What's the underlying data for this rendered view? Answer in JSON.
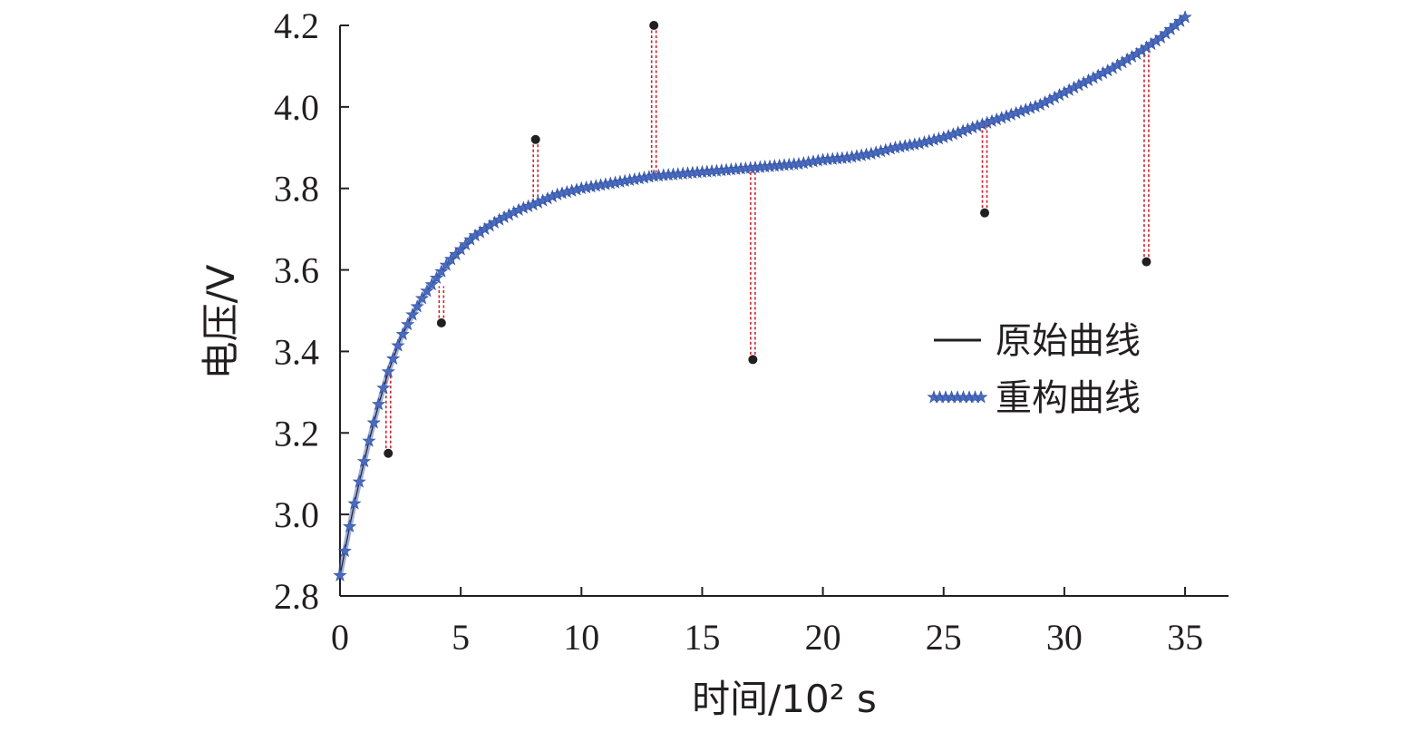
{
  "chart_data": {
    "type": "line",
    "xlabel": "时间/10² s",
    "ylabel": "电压/V",
    "xlim": [
      0,
      36.8
    ],
    "ylim": [
      2.8,
      4.2
    ],
    "x_ticks": [
      0,
      5,
      10,
      15,
      20,
      25,
      30,
      35
    ],
    "y_ticks": [
      2.8,
      3.0,
      3.2,
      3.4,
      3.6,
      3.8,
      4.0,
      4.2
    ],
    "x_tick_labels": [
      "0",
      "5",
      "10",
      "15",
      "20",
      "25",
      "30",
      "35"
    ],
    "y_tick_labels": [
      "2.8",
      "3.0",
      "3.2",
      "3.4",
      "3.6",
      "3.8",
      "4.0",
      "4.2"
    ],
    "grid": false,
    "legend": {
      "position": "right-center",
      "entries": [
        "原始曲线",
        "重构曲线"
      ]
    },
    "series": [
      {
        "name": "原始曲线",
        "color": "#231f20",
        "x": [
          0,
          0.2,
          0.5,
          0.8,
          1.2,
          1.6,
          2.0,
          2.5,
          3.0,
          3.5,
          4.0,
          4.5,
          5.0,
          5.5,
          6.0,
          6.5,
          7.0,
          7.5,
          8.0,
          9.0,
          10.0,
          11.0,
          12.0,
          13.0,
          14.0,
          15.0,
          16.0,
          17.0,
          18.0,
          19.0,
          20.0,
          21.0,
          22.0,
          23.0,
          24.0,
          25.0,
          26.0,
          27.0,
          28.0,
          29.0,
          30.0,
          31.0,
          32.0,
          33.0,
          34.0,
          35.0
        ],
        "y": [
          2.85,
          2.91,
          3.0,
          3.08,
          3.18,
          3.27,
          3.35,
          3.43,
          3.49,
          3.54,
          3.58,
          3.62,
          3.65,
          3.68,
          3.7,
          3.72,
          3.735,
          3.75,
          3.76,
          3.785,
          3.8,
          3.81,
          3.82,
          3.83,
          3.835,
          3.84,
          3.845,
          3.85,
          3.855,
          3.86,
          3.87,
          3.875,
          3.885,
          3.9,
          3.91,
          3.925,
          3.945,
          3.965,
          3.985,
          4.005,
          4.035,
          4.065,
          4.095,
          4.13,
          4.17,
          4.22
        ]
      },
      {
        "name": "重构曲线",
        "color": "#4a6bc0",
        "x": [
          0,
          0.2,
          0.5,
          0.8,
          1.2,
          1.6,
          2.0,
          2.5,
          3.0,
          3.5,
          4.0,
          4.5,
          5.0,
          5.5,
          6.0,
          6.5,
          7.0,
          7.5,
          8.0,
          9.0,
          10.0,
          11.0,
          12.0,
          13.0,
          14.0,
          15.0,
          16.0,
          17.0,
          18.0,
          19.0,
          20.0,
          21.0,
          22.0,
          23.0,
          24.0,
          25.0,
          26.0,
          27.0,
          28.0,
          29.0,
          30.0,
          31.0,
          32.0,
          33.0,
          34.0,
          35.0
        ],
        "y": [
          2.85,
          2.91,
          3.0,
          3.08,
          3.18,
          3.27,
          3.35,
          3.43,
          3.49,
          3.54,
          3.58,
          3.62,
          3.65,
          3.68,
          3.7,
          3.72,
          3.735,
          3.75,
          3.76,
          3.785,
          3.8,
          3.81,
          3.82,
          3.83,
          3.835,
          3.84,
          3.845,
          3.85,
          3.855,
          3.86,
          3.87,
          3.875,
          3.885,
          3.9,
          3.91,
          3.925,
          3.945,
          3.965,
          3.985,
          4.005,
          4.035,
          4.065,
          4.095,
          4.13,
          4.17,
          4.22
        ]
      }
    ],
    "outliers": [
      {
        "x": 2.0,
        "y": 3.15,
        "curve_y": 3.35
      },
      {
        "x": 4.2,
        "y": 3.47,
        "curve_y": 3.56
      },
      {
        "x": 8.1,
        "y": 3.92,
        "curve_y": 3.76
      },
      {
        "x": 13.0,
        "y": 4.2,
        "curve_y": 3.83
      },
      {
        "x": 17.1,
        "y": 3.38,
        "curve_y": 3.85
      },
      {
        "x": 26.7,
        "y": 3.74,
        "curve_y": 3.96
      },
      {
        "x": 33.4,
        "y": 3.62,
        "curve_y": 4.14
      }
    ],
    "outlier_color": "#231f20",
    "connector_color": "#d0202a"
  }
}
